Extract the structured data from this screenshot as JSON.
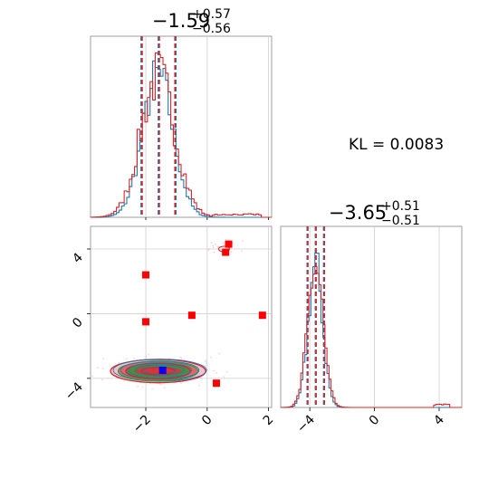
{
  "chart_data": {
    "type": "corner",
    "annotation": "KL = 0.0083",
    "titles": {
      "param1": {
        "value": "−1.59",
        "upper": "+0.57",
        "lower": "−0.56"
      },
      "param2": {
        "value": "−3.65",
        "upper": "+0.51",
        "lower": "−0.51"
      }
    },
    "series_colors": {
      "blue": "#1f77b4",
      "red": "#d62728",
      "green": "#2ca02c",
      "marker_blue": "#0000ff",
      "marker_red": "#ff0000"
    },
    "axes": {
      "param1": {
        "lim": [
          -3.8,
          2.1
        ],
        "ticks": [
          -2,
          0,
          2
        ],
        "tick_labels": [
          "−2",
          "0",
          "2"
        ]
      },
      "param2": {
        "lim": [
          -5.8,
          5.4
        ],
        "ticks": [
          -4,
          0,
          4
        ],
        "tick_labels": [
          "−4",
          "0",
          "4"
        ]
      }
    },
    "hist1": {
      "blue": {
        "mode": -1.6,
        "sd": 0.5,
        "quantiles": [
          -2.15,
          -1.59,
          -1.02
        ]
      },
      "red": {
        "mode": -1.6,
        "sd": 0.56,
        "quantiles": [
          -2.15,
          -1.59,
          -1.08
        ],
        "outlier_range": [
          0.2,
          1.8
        ]
      }
    },
    "hist2": {
      "blue": {
        "mode": -3.65,
        "sd": 0.45,
        "quantiles": [
          -4.16,
          -3.65,
          -3.14
        ]
      },
      "red": {
        "mode": -3.65,
        "sd": 0.48,
        "quantiles": [
          -4.16,
          -3.65,
          -3.14
        ],
        "outlier_range": [
          3.6,
          4.6
        ]
      }
    },
    "joint": {
      "contour_center": [
        -1.6,
        -3.55
      ],
      "contour_halfwidths": [
        [
          1.55,
          0.72
        ],
        [
          1.3,
          0.6
        ],
        [
          1.05,
          0.48
        ],
        [
          0.8,
          0.35
        ],
        [
          0.55,
          0.22
        ]
      ],
      "truth_blue": [
        -1.45,
        -3.5
      ],
      "red_squares": [
        [
          -2.0,
          2.4
        ],
        [
          -2.0,
          -0.5
        ],
        [
          -0.5,
          -0.1
        ],
        [
          1.8,
          -0.1
        ],
        [
          0.6,
          3.8
        ],
        [
          0.7,
          4.3
        ],
        [
          0.3,
          -4.3
        ]
      ]
    }
  }
}
